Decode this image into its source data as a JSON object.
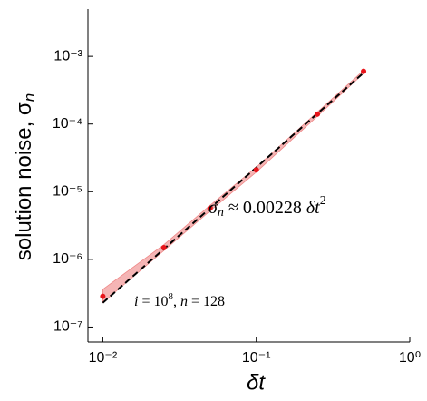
{
  "chart_data": {
    "type": "scatter",
    "x_label": "δt",
    "y_label": [
      "solution noise, σ",
      "n"
    ],
    "x": [
      0.01,
      0.025,
      0.05,
      0.1,
      0.25,
      0.5
    ],
    "series": [
      {
        "color": "#e8141a",
        "values": [
          2.84e-07,
          1.49e-06,
          5.7e-06,
          2.1e-05,
          0.00014,
          0.0006
        ]
      }
    ],
    "band": {
      "color": "#f5b5b5",
      "edge": "#e88",
      "lower": [
        2.3e-07,
        1.35e-06,
        5.2e-06,
        1.95e-05,
        0.00013,
        0.00056
      ],
      "upper": [
        3.6e-07,
        1.65e-06,
        6.3e-06,
        2.3e-05,
        0.00015,
        0.00062
      ]
    },
    "fit": {
      "coefficient": 0.00228,
      "exponent": 2,
      "color": "#000000"
    },
    "annotations": [
      {
        "parts": [
          "σ",
          "n",
          " ≈ 0.00228 ",
          "δt",
          "2"
        ]
      },
      {
        "parts": [
          "i",
          " = 10",
          "8",
          ",  ",
          "n",
          " = 128"
        ]
      }
    ],
    "xscale": "log",
    "yscale": "log",
    "xlim": [
      0.008,
      1
    ],
    "ylim": [
      6e-08,
      0.005
    ],
    "xticks": [
      {
        "value": 0.01,
        "label": "10⁻²"
      },
      {
        "value": 0.1,
        "label": "10⁻¹"
      },
      {
        "value": 1,
        "label": "10⁰"
      }
    ],
    "yticks": [
      {
        "value": 1e-07,
        "label": "10⁻⁷"
      },
      {
        "value": 1e-06,
        "label": "10⁻⁶"
      },
      {
        "value": 1e-05,
        "label": "10⁻⁵"
      },
      {
        "value": 0.0001,
        "label": "10⁻⁴"
      },
      {
        "value": 0.001,
        "label": "10⁻³"
      }
    ]
  }
}
